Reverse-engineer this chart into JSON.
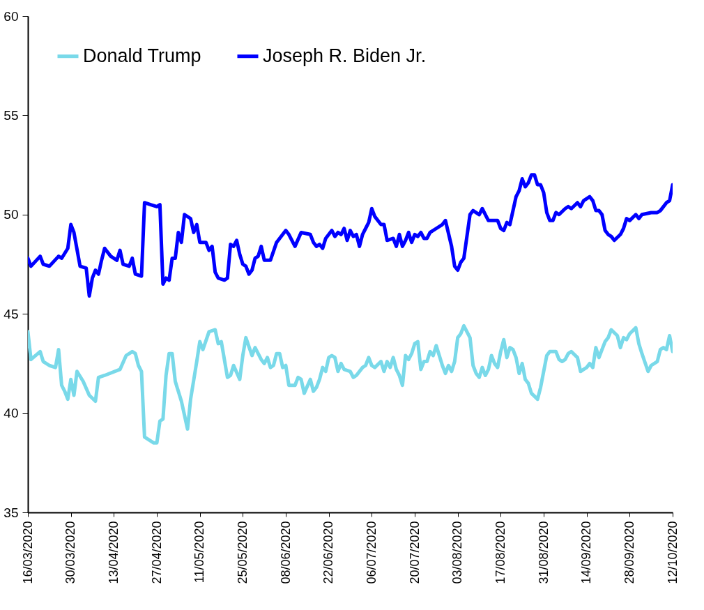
{
  "chart_data": {
    "type": "line",
    "x": [
      "2020-03-16",
      "2020-03-17",
      "2020-03-20",
      "2020-03-21",
      "2020-03-23",
      "2020-03-26",
      "2020-03-27",
      "2020-03-29",
      "2020-03-30",
      "2020-03-31",
      "2020-04-02",
      "2020-04-04",
      "2020-04-05",
      "2020-04-06",
      "2020-04-07",
      "2020-04-08",
      "2020-04-09",
      "2020-04-10",
      "2020-04-12",
      "2020-04-14",
      "2020-04-15",
      "2020-04-16",
      "2020-04-18",
      "2020-04-19",
      "2020-04-20",
      "2020-04-22",
      "2020-04-23",
      "2020-04-25",
      "2020-04-27",
      "2020-04-28",
      "2020-04-29",
      "2020-04-30",
      "2020-05-01",
      "2020-05-02",
      "2020-05-03",
      "2020-05-04",
      "2020-05-05",
      "2020-05-06",
      "2020-05-08",
      "2020-05-09",
      "2020-05-10",
      "2020-05-11",
      "2020-05-13",
      "2020-05-14",
      "2020-05-15",
      "2020-05-16",
      "2020-05-17",
      "2020-05-19",
      "2020-05-20",
      "2020-05-21",
      "2020-05-22",
      "2020-05-23",
      "2020-05-24",
      "2020-05-25",
      "2020-05-26",
      "2020-05-27",
      "2020-05-28",
      "2020-05-29",
      "2020-05-30",
      "2020-05-31",
      "2020-06-01",
      "2020-06-03",
      "2020-06-05",
      "2020-06-08",
      "2020-06-09",
      "2020-06-11",
      "2020-06-13",
      "2020-06-16",
      "2020-06-17",
      "2020-06-18",
      "2020-06-19",
      "2020-06-20",
      "2020-06-21",
      "2020-06-22",
      "2020-06-23",
      "2020-06-24",
      "2020-06-25",
      "2020-06-26",
      "2020-06-27",
      "2020-06-28",
      "2020-06-29",
      "2020-06-30",
      "2020-07-01",
      "2020-07-02",
      "2020-07-03",
      "2020-07-04",
      "2020-07-05",
      "2020-07-06",
      "2020-07-07",
      "2020-07-09",
      "2020-07-10",
      "2020-07-11",
      "2020-07-13",
      "2020-07-14",
      "2020-07-15",
      "2020-07-16",
      "2020-07-17",
      "2020-07-18",
      "2020-07-19",
      "2020-07-20",
      "2020-07-21",
      "2020-07-22",
      "2020-07-23",
      "2020-07-24",
      "2020-07-25",
      "2020-07-27",
      "2020-07-29",
      "2020-07-30",
      "2020-08-01",
      "2020-08-02",
      "2020-08-03",
      "2020-08-04",
      "2020-08-05",
      "2020-08-06",
      "2020-08-07",
      "2020-08-08",
      "2020-08-10",
      "2020-08-11",
      "2020-08-12",
      "2020-08-13",
      "2020-08-16",
      "2020-08-17",
      "2020-08-18",
      "2020-08-19",
      "2020-08-20",
      "2020-08-21",
      "2020-08-22",
      "2020-08-23",
      "2020-08-24",
      "2020-08-25",
      "2020-08-26",
      "2020-08-27",
      "2020-08-28",
      "2020-08-29",
      "2020-08-30",
      "2020-08-31",
      "2020-09-01",
      "2020-09-02",
      "2020-09-03",
      "2020-09-04",
      "2020-09-05",
      "2020-09-07",
      "2020-09-08",
      "2020-09-09",
      "2020-09-11",
      "2020-09-12",
      "2020-09-13",
      "2020-09-15",
      "2020-09-16",
      "2020-09-17",
      "2020-09-18",
      "2020-09-19",
      "2020-09-20",
      "2020-09-21",
      "2020-09-22",
      "2020-09-23",
      "2020-09-25",
      "2020-09-26",
      "2020-09-27",
      "2020-09-28",
      "2020-09-30",
      "2020-10-01",
      "2020-10-02",
      "2020-10-05",
      "2020-10-07",
      "2020-10-08",
      "2020-10-10",
      "2020-10-11",
      "2020-10-12"
    ],
    "series": [
      {
        "name": "Donald Trump",
        "color": "#79d9e9",
        "x": [
          "2020-03-16",
          "2020-03-17",
          "2020-03-20",
          "2020-03-21",
          "2020-03-23",
          "2020-03-25",
          "2020-03-26",
          "2020-03-27",
          "2020-03-28",
          "2020-03-29",
          "2020-03-30",
          "2020-03-31",
          "2020-04-01",
          "2020-04-03",
          "2020-04-05",
          "2020-04-07",
          "2020-04-08",
          "2020-04-10",
          "2020-04-15",
          "2020-04-17",
          "2020-04-19",
          "2020-04-20",
          "2020-04-21",
          "2020-04-22",
          "2020-04-23",
          "2020-04-26",
          "2020-04-27",
          "2020-04-28",
          "2020-04-29",
          "2020-04-30",
          "2020-05-01",
          "2020-05-02",
          "2020-05-03",
          "2020-05-05",
          "2020-05-07",
          "2020-05-08",
          "2020-05-10",
          "2020-05-11",
          "2020-05-12",
          "2020-05-14",
          "2020-05-16",
          "2020-05-17",
          "2020-05-18",
          "2020-05-20",
          "2020-05-21",
          "2020-05-22",
          "2020-05-24",
          "2020-05-25",
          "2020-05-26",
          "2020-05-28",
          "2020-05-29",
          "2020-05-31",
          "2020-06-01",
          "2020-06-02",
          "2020-06-03",
          "2020-06-04",
          "2020-06-05",
          "2020-06-06",
          "2020-06-07",
          "2020-06-08",
          "2020-06-09",
          "2020-06-11",
          "2020-06-12",
          "2020-06-13",
          "2020-06-14",
          "2020-06-16",
          "2020-06-17",
          "2020-06-18",
          "2020-06-19",
          "2020-06-20",
          "2020-06-21",
          "2020-06-22",
          "2020-06-23",
          "2020-06-24",
          "2020-06-25",
          "2020-06-26",
          "2020-06-27",
          "2020-06-29",
          "2020-06-30",
          "2020-07-01",
          "2020-07-03",
          "2020-07-04",
          "2020-07-05",
          "2020-07-06",
          "2020-07-07",
          "2020-07-09",
          "2020-07-10",
          "2020-07-11",
          "2020-07-12",
          "2020-07-13",
          "2020-07-14",
          "2020-07-15",
          "2020-07-16",
          "2020-07-17",
          "2020-07-18",
          "2020-07-19",
          "2020-07-20",
          "2020-07-21",
          "2020-07-22",
          "2020-07-23",
          "2020-07-24",
          "2020-07-25",
          "2020-07-26",
          "2020-07-27",
          "2020-07-28",
          "2020-07-29",
          "2020-07-30",
          "2020-07-31",
          "2020-08-01",
          "2020-08-02",
          "2020-08-03",
          "2020-08-04",
          "2020-08-05",
          "2020-08-06",
          "2020-08-07",
          "2020-08-08",
          "2020-08-09",
          "2020-08-10",
          "2020-08-11",
          "2020-08-12",
          "2020-08-13",
          "2020-08-14",
          "2020-08-15",
          "2020-08-16",
          "2020-08-17",
          "2020-08-18",
          "2020-08-19",
          "2020-08-20",
          "2020-08-21",
          "2020-08-22",
          "2020-08-23",
          "2020-08-24",
          "2020-08-25",
          "2020-08-26",
          "2020-08-27",
          "2020-08-29",
          "2020-08-30",
          "2020-09-01",
          "2020-09-02",
          "2020-09-04",
          "2020-09-05",
          "2020-09-06",
          "2020-09-07",
          "2020-09-08",
          "2020-09-09",
          "2020-09-11",
          "2020-09-12",
          "2020-09-13",
          "2020-09-14",
          "2020-09-15",
          "2020-09-16",
          "2020-09-17",
          "2020-09-18",
          "2020-09-19",
          "2020-09-20",
          "2020-09-21",
          "2020-09-22",
          "2020-09-24",
          "2020-09-25",
          "2020-09-26",
          "2020-09-27",
          "2020-09-28",
          "2020-09-30",
          "2020-10-01",
          "2020-10-02",
          "2020-10-04",
          "2020-10-05",
          "2020-10-07",
          "2020-10-08",
          "2020-10-09",
          "2020-10-10",
          "2020-10-11",
          "2020-10-12"
        ],
        "values": [
          44.1,
          42.7,
          43.1,
          42.6,
          42.4,
          42.3,
          43.2,
          41.4,
          41.1,
          40.7,
          41.7,
          40.9,
          42.1,
          41.6,
          40.9,
          40.6,
          41.8,
          41.9,
          42.2,
          42.9,
          43.1,
          43.0,
          42.4,
          42.1,
          38.8,
          38.5,
          38.5,
          39.6,
          39.7,
          41.9,
          43.0,
          43.0,
          41.6,
          40.6,
          39.2,
          40.7,
          42.6,
          43.6,
          43.2,
          44.1,
          44.2,
          43.5,
          43.6,
          41.8,
          41.9,
          42.4,
          41.7,
          42.9,
          43.8,
          42.9,
          43.3,
          42.7,
          42.5,
          42.8,
          42.3,
          42.4,
          43.0,
          43.0,
          42.3,
          42.4,
          41.4,
          41.4,
          41.8,
          41.7,
          41.0,
          41.7,
          41.1,
          41.3,
          41.7,
          42.3,
          42.1,
          42.8,
          42.9,
          42.8,
          42.1,
          42.5,
          42.2,
          42.1,
          41.8,
          41.9,
          42.3,
          42.4,
          42.8,
          42.4,
          42.3,
          42.6,
          42.1,
          42.6,
          42.3,
          42.8,
          42.2,
          41.9,
          41.4,
          42.9,
          42.7,
          43.0,
          43.5,
          43.6,
          42.2,
          42.6,
          42.6,
          43.1,
          42.9,
          43.4,
          42.9,
          42.4,
          42.0,
          42.4,
          42.1,
          42.6,
          43.8,
          44.0,
          44.4,
          44.1,
          43.8,
          42.4,
          42.0,
          41.8,
          42.3,
          41.9,
          42.2,
          42.9,
          42.5,
          42.3,
          43.1,
          43.7,
          42.8,
          43.3,
          43.2,
          42.8,
          42.0,
          42.5,
          41.7,
          41.5,
          41.0,
          40.7,
          41.3,
          42.9,
          43.1,
          43.1,
          42.7,
          42.6,
          42.7,
          43.0,
          43.1,
          42.8,
          42.1,
          42.2,
          42.3,
          42.5,
          42.3,
          43.3,
          42.8,
          43.2,
          43.6,
          43.8,
          44.2,
          43.9,
          43.3,
          43.8,
          43.7,
          44.0,
          44.3,
          43.5,
          43.0,
          42.1,
          42.4,
          42.6,
          43.2,
          43.3,
          43.2,
          43.9,
          43.1
        ]
      },
      {
        "name": "Joseph R. Biden Jr.",
        "color": "#0000ff",
        "values": [
          47.8,
          47.4,
          47.9,
          47.5,
          47.4,
          47.9,
          47.8,
          48.3,
          49.5,
          49.1,
          47.4,
          47.3,
          45.9,
          46.8,
          47.2,
          47.0,
          47.7,
          48.3,
          47.9,
          47.7,
          48.2,
          47.5,
          47.4,
          47.8,
          47.0,
          46.9,
          50.6,
          50.5,
          50.4,
          50.5,
          46.5,
          46.8,
          46.7,
          47.8,
          47.8,
          49.1,
          48.6,
          50.0,
          49.8,
          49.1,
          49.5,
          48.6,
          48.6,
          48.2,
          48.4,
          47.1,
          46.8,
          46.7,
          46.8,
          48.5,
          48.4,
          48.7,
          48.0,
          47.5,
          47.4,
          47.0,
          47.2,
          47.8,
          47.9,
          48.4,
          47.7,
          47.7,
          48.6,
          49.2,
          49.0,
          48.4,
          49.1,
          49.0,
          48.6,
          48.4,
          48.5,
          48.3,
          48.8,
          49.0,
          49.2,
          48.9,
          49.1,
          49.0,
          49.3,
          48.7,
          49.2,
          48.9,
          49.0,
          48.4,
          49.0,
          49.3,
          49.6,
          50.3,
          49.9,
          49.5,
          49.5,
          48.7,
          48.8,
          48.4,
          49.0,
          48.4,
          48.7,
          49.1,
          48.6,
          49.0,
          48.9,
          49.1,
          48.8,
          48.8,
          49.1,
          49.3,
          49.5,
          49.7,
          48.4,
          47.4,
          47.2,
          47.6,
          47.8,
          48.9,
          50.0,
          50.2,
          50.0,
          50.3,
          50.0,
          49.7,
          49.7,
          49.3,
          49.2,
          49.6,
          49.5,
          50.2,
          50.9,
          51.2,
          51.8,
          51.4,
          51.6,
          52.0,
          52.0,
          51.5,
          51.5,
          51.1,
          50.1,
          49.7,
          49.7,
          50.1,
          50.0,
          50.3,
          50.4,
          50.3,
          50.6,
          50.4,
          50.7,
          50.9,
          50.7,
          50.2,
          50.2,
          50.0,
          49.2,
          49.0,
          48.9,
          48.7,
          49.0,
          49.3,
          49.8,
          49.7,
          50.0,
          49.8,
          50.0,
          50.1,
          50.1,
          50.2,
          50.6,
          50.7,
          51.5
        ]
      }
    ],
    "xlim": [
      "2020-03-16",
      "2020-10-12"
    ],
    "xticks": [
      {
        "value": "2020-03-16",
        "label": "16/03/2020"
      },
      {
        "value": "2020-03-30",
        "label": "30/03/2020"
      },
      {
        "value": "2020-04-13",
        "label": "13/04/2020"
      },
      {
        "value": "2020-04-27",
        "label": "27/04/2020"
      },
      {
        "value": "2020-05-11",
        "label": "11/05/2020"
      },
      {
        "value": "2020-05-25",
        "label": "25/05/2020"
      },
      {
        "value": "2020-06-08",
        "label": "08/06/2020"
      },
      {
        "value": "2020-06-22",
        "label": "22/06/2020"
      },
      {
        "value": "2020-07-06",
        "label": "06/07/2020"
      },
      {
        "value": "2020-07-20",
        "label": "20/07/2020"
      },
      {
        "value": "2020-08-03",
        "label": "03/08/2020"
      },
      {
        "value": "2020-08-17",
        "label": "17/08/2020"
      },
      {
        "value": "2020-08-31",
        "label": "31/08/2020"
      },
      {
        "value": "2020-09-14",
        "label": "14/09/2020"
      },
      {
        "value": "2020-09-28",
        "label": "28/09/2020"
      },
      {
        "value": "2020-10-12",
        "label": "12/10/2020"
      }
    ],
    "ylim": [
      35,
      60
    ],
    "yticks": [
      35,
      40,
      45,
      50,
      55,
      60
    ],
    "grid": false,
    "legend": "top left",
    "marker": "none",
    "line_style": "solid"
  }
}
